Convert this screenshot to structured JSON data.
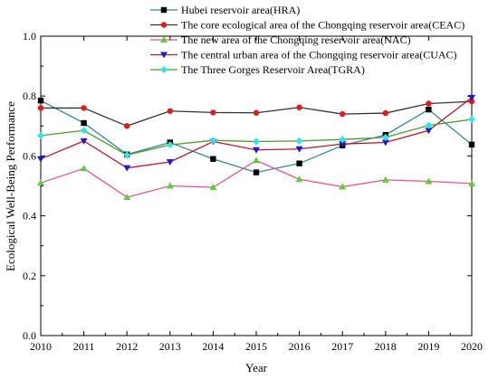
{
  "chart_data": {
    "type": "line",
    "title": "",
    "xlabel": "Year",
    "ylabel": "Ecological Well-Being Performance",
    "x": [
      2010,
      2011,
      2012,
      2013,
      2014,
      2015,
      2016,
      2017,
      2018,
      2019,
      2020
    ],
    "xlim": [
      2010,
      2020
    ],
    "ylim": [
      0.0,
      1.0
    ],
    "yticks": [
      "0.0",
      "0.2",
      "0.4",
      "0.6",
      "0.8",
      "1.0"
    ],
    "grid": false,
    "legend_position": "top",
    "series": [
      {
        "name": "Hubei reservoir area(HRA)",
        "color": "#2e8b9a",
        "marker": "square",
        "marker_color": "#000000",
        "values": [
          0.785,
          0.71,
          0.605,
          0.645,
          0.59,
          0.545,
          0.575,
          0.635,
          0.67,
          0.755,
          0.638
        ]
      },
      {
        "name": "The core ecological area of the Chongqing reservoir area(CEAC)",
        "color": "#333333",
        "marker": "circle",
        "marker_color": "#e01b1b",
        "values": [
          0.76,
          0.76,
          0.7,
          0.75,
          0.745,
          0.744,
          0.762,
          0.74,
          0.743,
          0.775,
          0.782
        ]
      },
      {
        "name": "The new area of the Chongqing reservoir area(NAC)",
        "color": "#e8538a",
        "marker": "triangle-up",
        "marker_color": "#5ccf3a",
        "values": [
          0.51,
          0.558,
          0.462,
          0.5,
          0.495,
          0.585,
          0.522,
          0.497,
          0.52,
          0.515,
          0.508
        ]
      },
      {
        "name": "The central urban area of the Chongqing reservoir area(CUAC)",
        "color": "#c0142a",
        "marker": "triangle-down",
        "marker_color": "#1a1ad6",
        "values": [
          0.59,
          0.65,
          0.56,
          0.58,
          0.648,
          0.62,
          0.623,
          0.64,
          0.645,
          0.685,
          0.795
        ]
      },
      {
        "name": "The Three Gorges Reservoir Area(TGRA)",
        "color": "#4e9a24",
        "marker": "diamond",
        "marker_color": "#2fe6e6",
        "values": [
          0.668,
          0.685,
          0.603,
          0.637,
          0.652,
          0.648,
          0.65,
          0.655,
          0.662,
          0.702,
          0.722
        ]
      }
    ]
  }
}
